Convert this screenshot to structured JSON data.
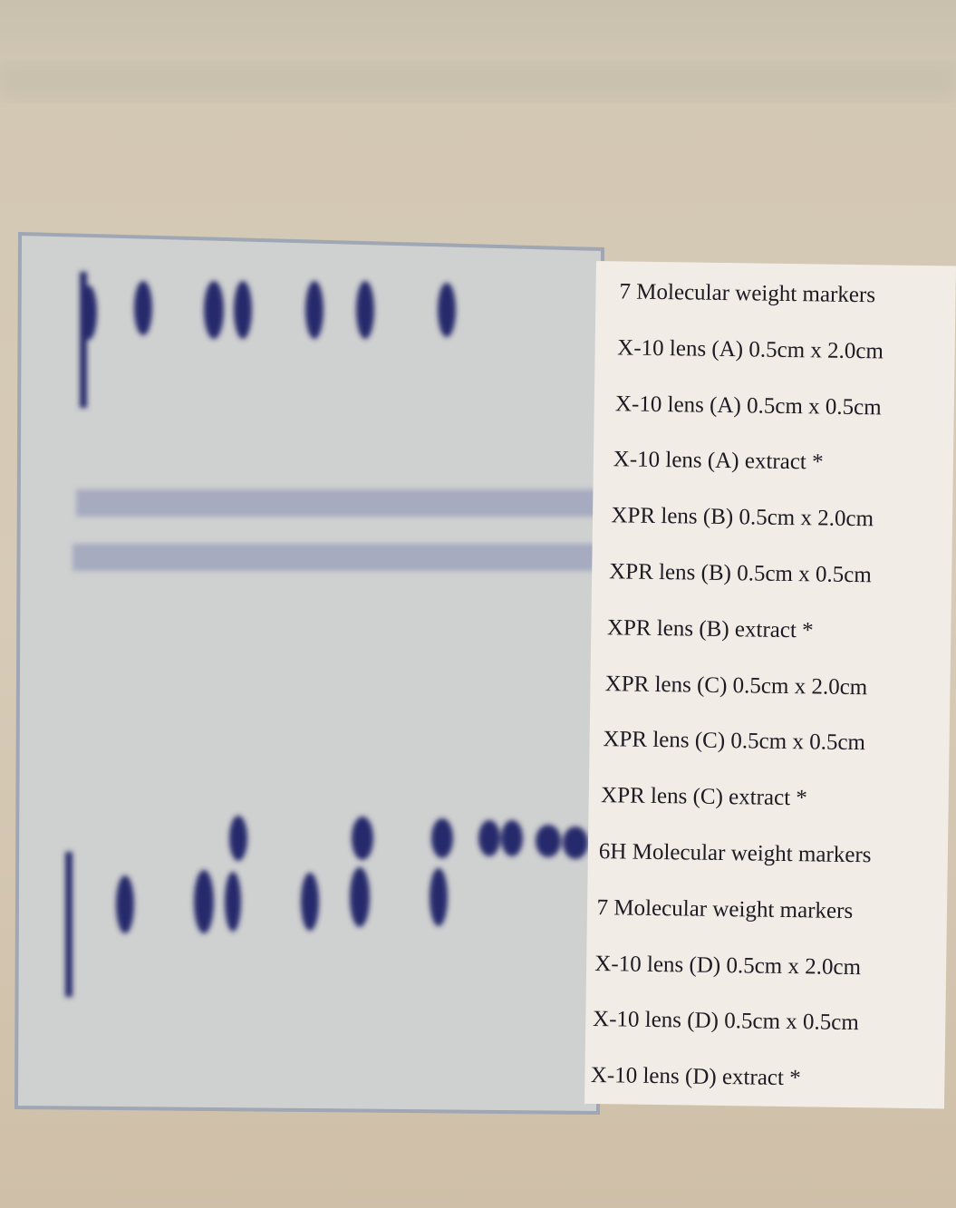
{
  "labels": [
    "7 Molecular weight markers",
    "X-10 lens (A) 0.5cm x 2.0cm",
    "X-10 lens (A) 0.5cm x 0.5cm",
    "X-10 lens (A) extract *",
    "XPR lens (B) 0.5cm x 2.0cm",
    "XPR lens (B) 0.5cm x 0.5cm",
    "XPR lens (B) extract *",
    "XPR lens (C) 0.5cm x 2.0cm",
    "XPR lens (C) 0.5cm x 0.5cm",
    "XPR lens (C) extract *",
    "6H Molecular weight markers",
    "7 Molecular weight markers",
    "X-10 lens (D) 0.5cm x 2.0cm",
    "X-10 lens (D) 0.5cm x 0.5cm",
    "X-10 lens (D) extract *"
  ]
}
